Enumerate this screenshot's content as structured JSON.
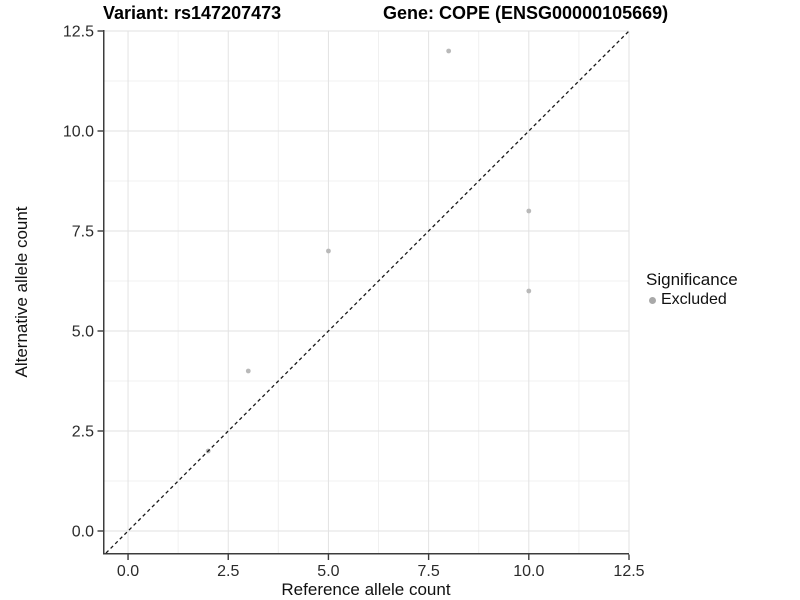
{
  "chart_data": {
    "type": "scatter",
    "titles": {
      "left": "Variant: rs147207473",
      "right": "Gene: COPE (ENSG00000105669)"
    },
    "xlabel": "Reference allele count",
    "ylabel": "Alternative allele count",
    "x_tick_values": [
      0,
      2.5,
      5,
      7.5,
      10,
      12.5
    ],
    "x_tick_labels": [
      "0.0",
      "2.5",
      "5.0",
      "7.5",
      "10.0",
      "12.5"
    ],
    "y_tick_values": [
      0,
      2.5,
      5,
      7.5,
      10,
      12.5
    ],
    "y_tick_labels": [
      "0.0",
      "2.5",
      "5.0",
      "7.5",
      "10.0",
      "12.5"
    ],
    "xlim": [
      -0.625,
      12.5
    ],
    "ylim": [
      -0.55,
      12.5
    ],
    "grid": {
      "major": true,
      "minor": true
    },
    "series": [
      {
        "name": "Excluded",
        "points": [
          [
            2,
            2
          ],
          [
            3,
            4
          ],
          [
            5,
            7
          ],
          [
            8,
            12
          ],
          [
            10,
            8
          ],
          [
            10,
            6
          ]
        ],
        "color": "#b9b9b9",
        "marker_radius": 2.4
      }
    ],
    "reference_line": {
      "type": "identity",
      "style": "dashed",
      "color": "#1a1a1a"
    },
    "legend": {
      "title": "Significance",
      "position": "right",
      "items": [
        {
          "label": "Excluded",
          "marker_color": "#a9a9a9"
        }
      ]
    },
    "colors": {
      "grid_major": "#e2e2e2",
      "grid_minor": "#f0f0f0",
      "axis_line": "#3c3c3c",
      "tick_mark": "#3c3c3c",
      "background": "#ffffff"
    }
  }
}
